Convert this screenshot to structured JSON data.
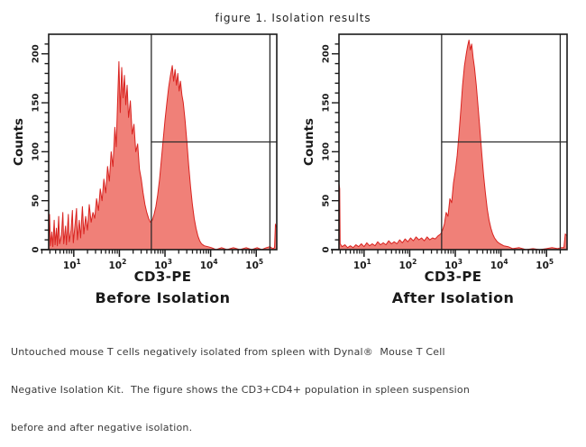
{
  "figure_title": "figure 1. Isolation results",
  "caption": {
    "lines": [
      "Untouched mouse T cells negatively isolated from spleen with Dynal®  Mouse T Cell",
      "Negative Isolation Kit.  The figure shows the CD3+CD4+ population in spleen suspension",
      "before and after negative isolation."
    ]
  },
  "colors": {
    "histogram_fill": "#f08078",
    "histogram_stroke": "#d92320",
    "axis": "#1b1b1b",
    "gate": "#2a2a2a",
    "text": "#1a1a1a",
    "caption_text": "#3a3a3a",
    "background": "#ffffff"
  },
  "chart_data": [
    {
      "type": "area",
      "title": "Before Isolation",
      "xlabel": "CD3-PE",
      "ylabel": "Counts",
      "xscale": "log",
      "x_decades": [
        1,
        2,
        3,
        4,
        5
      ],
      "xlim_log10": [
        0.45,
        5.45
      ],
      "ylim": [
        0,
        220
      ],
      "yticks": [
        0,
        50,
        100,
        150,
        200
      ],
      "y_minor_step": 10,
      "grid": false,
      "legend": null,
      "gate": {
        "x_log10": 2.7,
        "x_right_log10": 5.3,
        "y_counts": 110
      },
      "peaks_note": "negative peak ~1e2 (max ~190 counts), positive peak ~2e3 (max ~190 counts), valley ~30 counts at gate 5e2, overflow spike ~25 at right edge",
      "points_log10x_counts": [
        [
          0.45,
          3
        ],
        [
          0.47,
          36
        ],
        [
          0.49,
          4
        ],
        [
          0.52,
          18
        ],
        [
          0.54,
          3
        ],
        [
          0.57,
          30
        ],
        [
          0.59,
          5
        ],
        [
          0.62,
          22
        ],
        [
          0.64,
          4
        ],
        [
          0.67,
          34
        ],
        [
          0.69,
          6
        ],
        [
          0.73,
          15
        ],
        [
          0.76,
          38
        ],
        [
          0.78,
          6
        ],
        [
          0.82,
          24
        ],
        [
          0.84,
          5
        ],
        [
          0.88,
          36
        ],
        [
          0.9,
          8
        ],
        [
          0.94,
          20
        ],
        [
          0.97,
          40
        ],
        [
          0.99,
          7
        ],
        [
          1.03,
          26
        ],
        [
          1.06,
          42
        ],
        [
          1.08,
          10
        ],
        [
          1.12,
          30
        ],
        [
          1.15,
          12
        ],
        [
          1.19,
          44
        ],
        [
          1.22,
          16
        ],
        [
          1.26,
          34
        ],
        [
          1.3,
          20
        ],
        [
          1.34,
          46
        ],
        [
          1.38,
          28
        ],
        [
          1.42,
          38
        ],
        [
          1.46,
          32
        ],
        [
          1.5,
          52
        ],
        [
          1.54,
          40
        ],
        [
          1.58,
          62
        ],
        [
          1.62,
          50
        ],
        [
          1.66,
          72
        ],
        [
          1.7,
          58
        ],
        [
          1.74,
          85
        ],
        [
          1.78,
          70
        ],
        [
          1.82,
          100
        ],
        [
          1.86,
          85
        ],
        [
          1.9,
          125
        ],
        [
          1.93,
          105
        ],
        [
          1.96,
          150
        ],
        [
          1.99,
          192
        ],
        [
          2.02,
          140
        ],
        [
          2.05,
          186
        ],
        [
          2.08,
          155
        ],
        [
          2.11,
          178
        ],
        [
          2.14,
          148
        ],
        [
          2.17,
          168
        ],
        [
          2.2,
          135
        ],
        [
          2.24,
          152
        ],
        [
          2.28,
          118
        ],
        [
          2.32,
          128
        ],
        [
          2.36,
          100
        ],
        [
          2.4,
          108
        ],
        [
          2.44,
          82
        ],
        [
          2.48,
          72
        ],
        [
          2.52,
          58
        ],
        [
          2.56,
          46
        ],
        [
          2.6,
          38
        ],
        [
          2.64,
          32
        ],
        [
          2.68,
          28
        ],
        [
          2.72,
          30
        ],
        [
          2.76,
          36
        ],
        [
          2.8,
          44
        ],
        [
          2.84,
          56
        ],
        [
          2.88,
          72
        ],
        [
          2.92,
          92
        ],
        [
          2.96,
          112
        ],
        [
          3.0,
          132
        ],
        [
          3.04,
          150
        ],
        [
          3.08,
          166
        ],
        [
          3.12,
          178
        ],
        [
          3.16,
          188
        ],
        [
          3.19,
          172
        ],
        [
          3.22,
          184
        ],
        [
          3.25,
          168
        ],
        [
          3.28,
          180
        ],
        [
          3.31,
          162
        ],
        [
          3.34,
          172
        ],
        [
          3.37,
          158
        ],
        [
          3.4,
          150
        ],
        [
          3.44,
          132
        ],
        [
          3.48,
          110
        ],
        [
          3.52,
          86
        ],
        [
          3.56,
          64
        ],
        [
          3.6,
          46
        ],
        [
          3.64,
          32
        ],
        [
          3.68,
          22
        ],
        [
          3.72,
          14
        ],
        [
          3.76,
          9
        ],
        [
          3.8,
          6
        ],
        [
          3.86,
          4
        ],
        [
          3.94,
          3
        ],
        [
          4.02,
          2
        ],
        [
          4.12,
          0
        ],
        [
          4.24,
          2
        ],
        [
          4.36,
          0
        ],
        [
          4.5,
          2
        ],
        [
          4.64,
          0
        ],
        [
          4.78,
          2
        ],
        [
          4.9,
          0
        ],
        [
          5.02,
          2
        ],
        [
          5.12,
          0
        ],
        [
          5.22,
          2
        ],
        [
          5.3,
          3
        ],
        [
          5.36,
          1
        ],
        [
          5.4,
          2
        ],
        [
          5.42,
          26
        ],
        [
          5.45,
          22
        ]
      ]
    },
    {
      "type": "area",
      "title": "After Isolation",
      "xlabel": "CD3-PE",
      "ylabel": "Counts",
      "xscale": "log",
      "x_decades": [
        1,
        2,
        3,
        4,
        5
      ],
      "xlim_log10": [
        0.45,
        5.45
      ],
      "ylim": [
        0,
        220
      ],
      "yticks": [
        0,
        50,
        100,
        150,
        200
      ],
      "y_minor_step": 10,
      "grid": false,
      "legend": null,
      "gate": {
        "x_log10": 2.7,
        "x_right_log10": 5.3,
        "y_counts": 110
      },
      "peaks_note": "single positive peak ~2e3 (max ~210 counts), low baseline noise <15, underflow spike ~70 at left edge, overflow spike ~16 at right edge",
      "points_log10x_counts": [
        [
          0.45,
          68
        ],
        [
          0.465,
          62
        ],
        [
          0.475,
          6
        ],
        [
          0.52,
          3
        ],
        [
          0.58,
          5
        ],
        [
          0.64,
          2
        ],
        [
          0.7,
          4
        ],
        [
          0.76,
          2
        ],
        [
          0.82,
          5
        ],
        [
          0.88,
          3
        ],
        [
          0.94,
          6
        ],
        [
          1.0,
          3
        ],
        [
          1.06,
          7
        ],
        [
          1.12,
          4
        ],
        [
          1.18,
          6
        ],
        [
          1.24,
          4
        ],
        [
          1.3,
          8
        ],
        [
          1.36,
          5
        ],
        [
          1.42,
          7
        ],
        [
          1.48,
          5
        ],
        [
          1.54,
          9
        ],
        [
          1.6,
          6
        ],
        [
          1.66,
          8
        ],
        [
          1.72,
          6
        ],
        [
          1.78,
          10
        ],
        [
          1.84,
          7
        ],
        [
          1.9,
          11
        ],
        [
          1.96,
          8
        ],
        [
          2.02,
          12
        ],
        [
          2.08,
          9
        ],
        [
          2.14,
          13
        ],
        [
          2.2,
          10
        ],
        [
          2.26,
          12
        ],
        [
          2.32,
          9
        ],
        [
          2.38,
          13
        ],
        [
          2.44,
          10
        ],
        [
          2.5,
          12
        ],
        [
          2.56,
          11
        ],
        [
          2.62,
          14
        ],
        [
          2.68,
          16
        ],
        [
          2.72,
          20
        ],
        [
          2.76,
          26
        ],
        [
          2.8,
          38
        ],
        [
          2.84,
          34
        ],
        [
          2.88,
          52
        ],
        [
          2.92,
          48
        ],
        [
          2.96,
          68
        ],
        [
          3.0,
          80
        ],
        [
          3.04,
          96
        ],
        [
          3.08,
          118
        ],
        [
          3.12,
          142
        ],
        [
          3.16,
          168
        ],
        [
          3.2,
          188
        ],
        [
          3.24,
          200
        ],
        [
          3.27,
          208
        ],
        [
          3.3,
          214
        ],
        [
          3.33,
          204
        ],
        [
          3.36,
          210
        ],
        [
          3.39,
          196
        ],
        [
          3.42,
          186
        ],
        [
          3.46,
          168
        ],
        [
          3.5,
          146
        ],
        [
          3.54,
          122
        ],
        [
          3.58,
          98
        ],
        [
          3.62,
          76
        ],
        [
          3.66,
          58
        ],
        [
          3.7,
          42
        ],
        [
          3.74,
          30
        ],
        [
          3.78,
          22
        ],
        [
          3.82,
          16
        ],
        [
          3.86,
          12
        ],
        [
          3.92,
          8
        ],
        [
          3.98,
          6
        ],
        [
          4.06,
          4
        ],
        [
          4.16,
          3
        ],
        [
          4.26,
          1
        ],
        [
          4.4,
          2
        ],
        [
          4.55,
          0
        ],
        [
          4.7,
          1
        ],
        [
          4.85,
          0
        ],
        [
          5.0,
          1
        ],
        [
          5.12,
          2
        ],
        [
          5.24,
          1
        ],
        [
          5.32,
          2
        ],
        [
          5.38,
          2
        ],
        [
          5.41,
          16
        ],
        [
          5.45,
          14
        ]
      ]
    }
  ]
}
